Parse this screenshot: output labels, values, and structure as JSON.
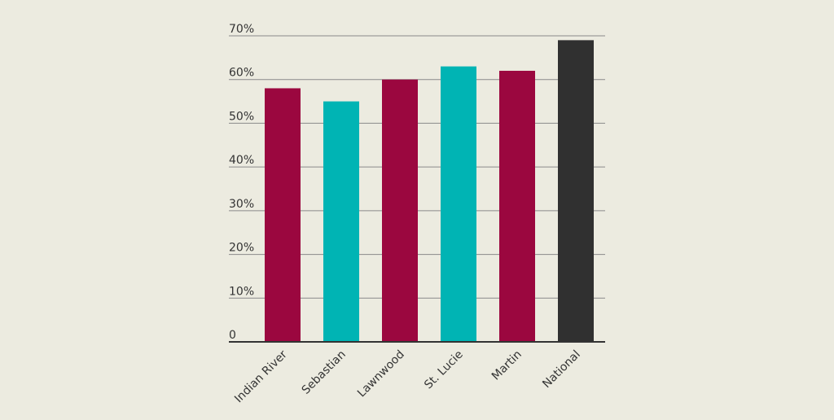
{
  "chart_data": {
    "type": "bar",
    "categories": [
      "Indian River",
      "Sebastian",
      "Lawnwood",
      "St. Lucie",
      "Martin",
      "National"
    ],
    "values": [
      58,
      55,
      60,
      63,
      62,
      69
    ],
    "bar_colors": [
      "#9b073f",
      "#00b4b4",
      "#9b073f",
      "#00b4b4",
      "#9b073f",
      "#303030"
    ],
    "ylim": [
      0,
      70
    ],
    "yticks": [
      0,
      10,
      20,
      30,
      40,
      50,
      60,
      70
    ],
    "ytick_labels": [
      "0",
      "10%",
      "20%",
      "30%",
      "40%",
      "50%",
      "60%",
      "70%"
    ],
    "grid": true,
    "title": "",
    "xlabel": "",
    "ylabel": ""
  },
  "colors": {
    "background": "#ecebe0",
    "gridline": "#8a8a8a",
    "axis": "#333333",
    "text": "#333333"
  }
}
